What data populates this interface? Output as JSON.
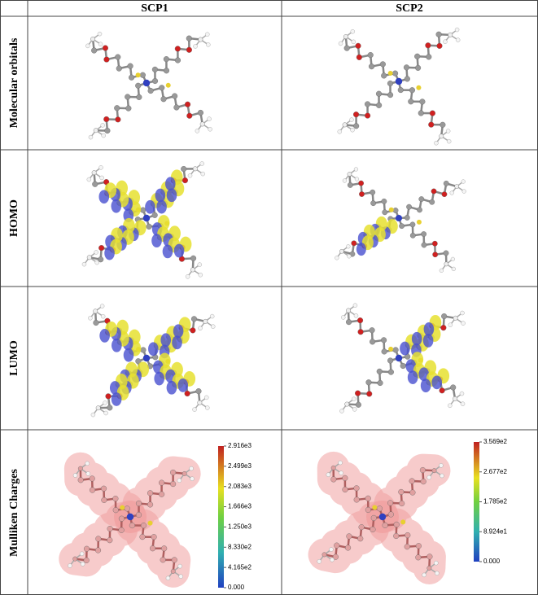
{
  "table": {
    "columns": [
      "SCP1",
      "SCP2"
    ],
    "rows": [
      "Molecular orbitals",
      "HOMO",
      "LUMO",
      "Mulliken Charges"
    ]
  },
  "colorbars": [
    {
      "labels": [
        "2.916e3",
        "2.499e3",
        "2.083e3",
        "1.666e3",
        "1.250e3",
        "8.330e2",
        "4.165e2",
        "0.000"
      ]
    },
    {
      "labels": [
        "3.569e2",
        "2.677e2",
        "1.785e2",
        "8.924e1",
        "0.000"
      ]
    }
  ]
}
